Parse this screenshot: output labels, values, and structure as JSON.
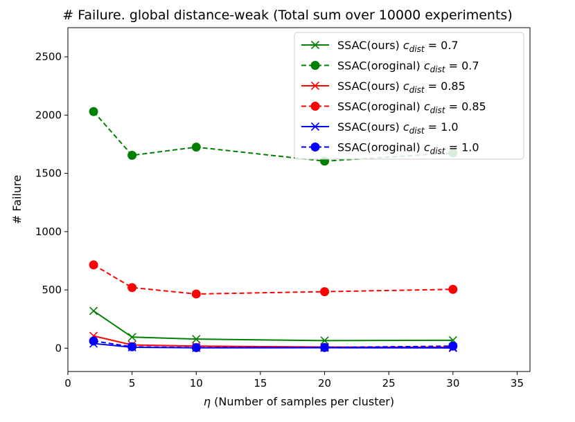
{
  "chart_data": {
    "type": "line",
    "title": "# Failure. global distance-weak (Total sum over 10000 experiments)",
    "xlabel_symbol": "η",
    "xlabel_text": " (Number of samples per cluster)",
    "ylabel": "# Failure",
    "xlim": [
      0,
      36
    ],
    "ylim": [
      -200,
      2750
    ],
    "xticks": [
      0,
      5,
      10,
      15,
      20,
      25,
      30,
      35
    ],
    "yticks": [
      0,
      500,
      1000,
      1500,
      2000,
      2500
    ],
    "x": [
      2,
      5,
      10,
      20,
      30
    ],
    "legend_position": "top-right",
    "series": [
      {
        "name_prefix": "SSAC(ours) ",
        "c_symbol": "c",
        "c_sub": "dist",
        "c_eq": " = 0.7",
        "color": "#008000",
        "linestyle": "solid",
        "marker": "x",
        "values": [
          320,
          95,
          78,
          65,
          68
        ]
      },
      {
        "name_prefix": "SSAC(oroginal) ",
        "c_symbol": "c",
        "c_sub": "dist",
        "c_eq": " = 0.7",
        "color": "#008000",
        "linestyle": "dashed",
        "marker": "o",
        "values": [
          2030,
          1655,
          1725,
          1605,
          1675
        ]
      },
      {
        "name_prefix": "SSAC(ours) ",
        "c_symbol": "c",
        "c_sub": "dist",
        "c_eq": " = 0.85",
        "color": "#ff0000",
        "linestyle": "solid",
        "marker": "x",
        "values": [
          105,
          28,
          18,
          10,
          8
        ]
      },
      {
        "name_prefix": "SSAC(oroginal) ",
        "c_symbol": "c",
        "c_sub": "dist",
        "c_eq": " = 0.85",
        "color": "#ff0000",
        "linestyle": "dashed",
        "marker": "o",
        "values": [
          715,
          520,
          465,
          485,
          505
        ]
      },
      {
        "name_prefix": "SSAC(ours) ",
        "c_symbol": "c",
        "c_sub": "dist",
        "c_eq": " = 1.0",
        "color": "#0000ff",
        "linestyle": "solid",
        "marker": "x",
        "values": [
          40,
          8,
          3,
          4,
          2
        ]
      },
      {
        "name_prefix": "SSAC(oroginal) ",
        "c_symbol": "c",
        "c_sub": "dist",
        "c_eq": " = 1.0",
        "color": "#0000ff",
        "linestyle": "dashed",
        "marker": "o",
        "values": [
          62,
          12,
          5,
          6,
          18
        ]
      }
    ]
  }
}
